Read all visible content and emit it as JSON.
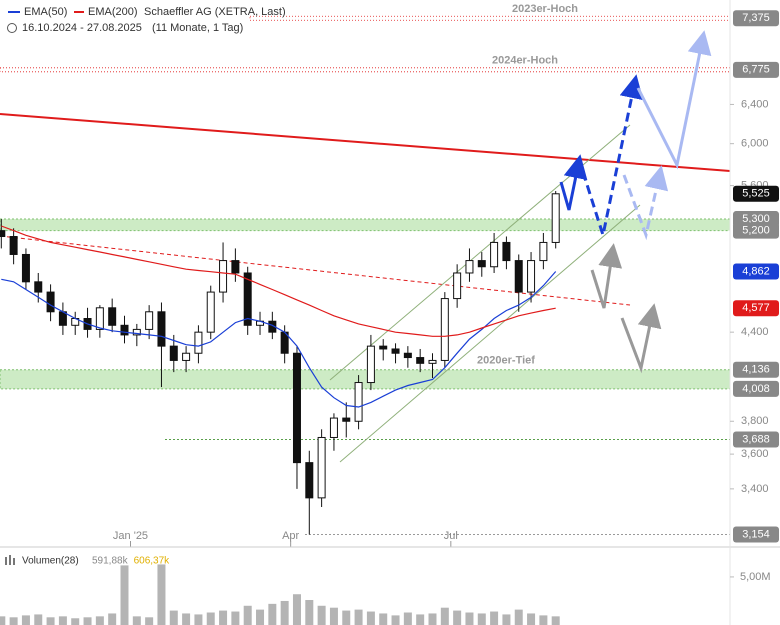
{
  "chart_data": {
    "type": "candlestick",
    "title": "Schaeffler AG (XETRA, Last)",
    "subtitle": "16.10.2024 - 27.08.2025",
    "period": "(11 Monate, 1 Tag)",
    "log_scale": true,
    "categories": [
      null,
      null,
      null,
      null,
      null,
      null,
      null,
      null,
      null,
      null,
      "Jan '25",
      null,
      null,
      null,
      null,
      null,
      null,
      null,
      null,
      null,
      null,
      null,
      null,
      "Apr",
      null,
      null,
      null,
      null,
      null,
      null,
      null,
      null,
      null,
      null,
      null,
      null,
      "Jul",
      null,
      null,
      null,
      null,
      null,
      null,
      null,
      null,
      null
    ],
    "open": [
      5.2,
      5.15,
      5.0,
      4.78,
      4.7,
      4.55,
      4.45,
      4.5,
      4.42,
      4.58,
      4.45,
      4.38,
      4.42,
      4.55,
      4.3,
      4.2,
      4.25,
      4.4,
      4.7,
      4.95,
      4.85,
      4.45,
      4.48,
      4.4,
      4.25,
      3.55,
      3.35,
      3.7,
      3.82,
      3.8,
      4.05,
      4.3,
      4.28,
      4.25,
      4.22,
      4.18,
      4.2,
      4.65,
      4.85,
      4.95,
      4.9,
      5.1,
      4.95,
      4.7,
      4.95,
      5.1
    ],
    "high": [
      5.3,
      5.22,
      5.05,
      4.85,
      4.76,
      4.62,
      4.55,
      4.58,
      4.6,
      4.65,
      4.52,
      4.46,
      4.6,
      4.62,
      4.38,
      4.3,
      4.45,
      4.75,
      5.1,
      5.05,
      4.9,
      4.55,
      4.55,
      4.45,
      4.3,
      3.62,
      3.75,
      3.85,
      3.92,
      4.1,
      4.38,
      4.35,
      4.32,
      4.3,
      4.28,
      4.25,
      4.7,
      4.92,
      5.05,
      5.02,
      5.18,
      5.15,
      5.0,
      5.02,
      5.18,
      5.55
    ],
    "low": [
      5.05,
      4.92,
      4.72,
      4.62,
      4.48,
      4.38,
      4.38,
      4.36,
      4.36,
      4.4,
      4.32,
      4.3,
      4.35,
      4.02,
      4.12,
      4.12,
      4.18,
      4.35,
      4.62,
      4.78,
      4.38,
      4.38,
      4.35,
      4.18,
      3.4,
      3.154,
      3.3,
      3.62,
      3.7,
      3.75,
      4.0,
      4.2,
      4.18,
      4.15,
      4.12,
      4.08,
      4.15,
      4.58,
      4.78,
      4.82,
      4.85,
      4.88,
      4.55,
      4.62,
      4.88,
      5.05
    ],
    "close": [
      5.15,
      5.0,
      4.78,
      4.7,
      4.55,
      4.45,
      4.5,
      4.42,
      4.58,
      4.45,
      4.38,
      4.42,
      4.55,
      4.3,
      4.2,
      4.25,
      4.4,
      4.7,
      4.95,
      4.85,
      4.45,
      4.48,
      4.4,
      4.25,
      3.55,
      3.35,
      3.7,
      3.82,
      3.8,
      4.05,
      4.3,
      4.28,
      4.25,
      4.22,
      4.18,
      4.2,
      4.65,
      4.85,
      4.95,
      4.9,
      5.1,
      4.95,
      4.7,
      4.95,
      5.1,
      5.525
    ],
    "series": [
      {
        "name": "EMA(50)",
        "color": "#1a3fd6",
        "values": [
          4.8,
          4.78,
          4.72,
          4.66,
          4.6,
          4.55,
          4.5,
          4.46,
          4.43,
          4.41,
          4.4,
          4.39,
          4.38,
          4.37,
          4.34,
          4.31,
          4.3,
          4.33,
          4.4,
          4.47,
          4.5,
          4.48,
          4.45,
          4.4,
          4.3,
          4.15,
          4.02,
          3.95,
          3.9,
          3.89,
          3.92,
          3.96,
          4.0,
          4.03,
          4.05,
          4.07,
          4.15,
          4.25,
          4.35,
          4.42,
          4.5,
          4.56,
          4.6,
          4.66,
          4.75,
          4.862
        ]
      },
      {
        "name": "EMA(200)",
        "color": "#e01b1b",
        "values": [
          5.24,
          5.2,
          5.16,
          5.13,
          5.1,
          5.08,
          5.06,
          5.04,
          5.02,
          5.0,
          4.98,
          4.96,
          4.94,
          4.92,
          4.9,
          4.88,
          4.87,
          4.86,
          4.85,
          4.84,
          4.8,
          4.76,
          4.72,
          4.68,
          4.64,
          4.6,
          4.56,
          4.52,
          4.49,
          4.46,
          4.44,
          4.42,
          4.4,
          4.39,
          4.38,
          4.37,
          4.37,
          4.38,
          4.4,
          4.43,
          4.46,
          4.49,
          4.52,
          4.54,
          4.56,
          4.577
        ]
      }
    ],
    "ylim": [
      3.1,
      7.6
    ],
    "yticks": [
      {
        "value": 3.4,
        "label": "3,400"
      },
      {
        "value": 3.6,
        "label": "3,600"
      },
      {
        "value": 3.8,
        "label": "3,800"
      },
      {
        "value": 4.4,
        "label": "4,400"
      },
      {
        "value": 5.6,
        "label": "5,600"
      },
      {
        "value": 6.0,
        "label": "6,000"
      },
      {
        "value": 6.4,
        "label": "6,400"
      }
    ],
    "price_boxes": [
      {
        "value": 7.375,
        "label": "7,375",
        "color": "#888888"
      },
      {
        "value": 6.775,
        "label": "6,775",
        "color": "#888888"
      },
      {
        "value": 5.525,
        "label": "5,525",
        "color": "#111111"
      },
      {
        "value": 5.3,
        "label": "5,300",
        "color": "#888888"
      },
      {
        "value": 5.2,
        "label": "5,200",
        "color": "#888888"
      },
      {
        "value": 4.862,
        "label": "4,862",
        "color": "#1a3fd6"
      },
      {
        "value": 4.577,
        "label": "4,577",
        "color": "#e01b1b"
      },
      {
        "value": 4.136,
        "label": "4,136",
        "color": "#888888"
      },
      {
        "value": 4.008,
        "label": "4,008",
        "color": "#888888"
      },
      {
        "value": 3.688,
        "label": "3,688",
        "color": "#888888"
      },
      {
        "value": 3.154,
        "label": "3,154",
        "color": "#888888"
      }
    ],
    "resistance_lines": [
      7.375,
      6.775
    ],
    "support_zones": [
      [
        5.2,
        5.3
      ],
      [
        4.008,
        4.136
      ]
    ],
    "support_lines": [
      3.688,
      3.154
    ],
    "annotations": [
      {
        "text": "2023er-Hoch",
        "value": 7.375
      },
      {
        "text": "2024er-Hoch",
        "value": 6.775
      },
      {
        "text": "2020er-Tief",
        "value": 4.136
      }
    ],
    "volume": {
      "title": "Volumen(28)",
      "labels": [
        {
          "text": "591,88k",
          "color": "#888888"
        },
        {
          "text": "606,37k",
          "color": "#e0b000"
        }
      ],
      "color": "#777777",
      "values": [
        900000,
        800000,
        1000000,
        1100000,
        800000,
        900000,
        700000,
        800000,
        900000,
        1200000,
        6200000,
        900000,
        800000,
        6300000,
        1500000,
        1200000,
        1100000,
        1300000,
        1500000,
        1400000,
        2000000,
        1600000,
        2200000,
        2500000,
        3200000,
        2600000,
        2000000,
        1800000,
        1500000,
        1600000,
        1400000,
        1200000,
        1000000,
        1300000,
        1100000,
        1200000,
        1800000,
        1500000,
        1300000,
        1200000,
        1400000,
        1100000,
        1600000,
        1200000,
        1000000,
        900000
      ],
      "ylim": [
        0,
        7800000
      ],
      "yticks": [
        {
          "value": 5000000,
          "label": "5,00M"
        }
      ]
    }
  }
}
